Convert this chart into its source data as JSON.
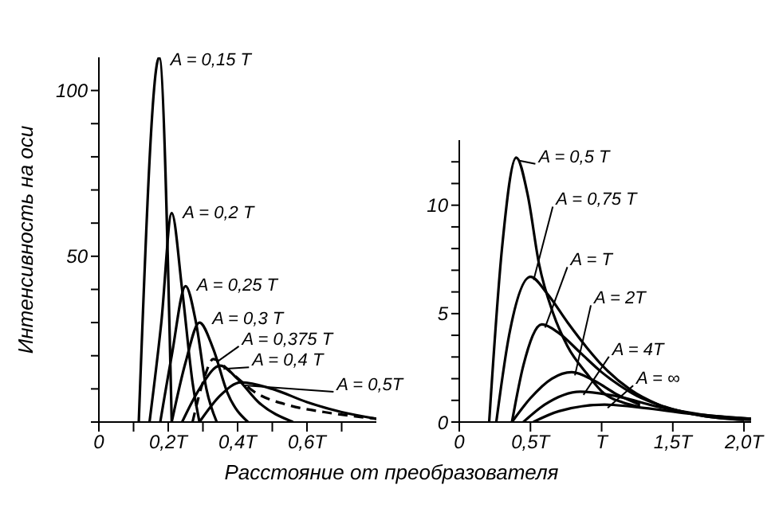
{
  "chart_data": [
    {
      "type": "line",
      "ylabel": "Интенсивность на оси",
      "xlabel": "Расстояние от преобразователя",
      "marker": "none",
      "xlim": [
        0,
        0.8
      ],
      "xticks": [
        {
          "value": 0,
          "label": "0"
        },
        {
          "value": 0.1,
          "label": null
        },
        {
          "value": 0.2,
          "label": "0,2T"
        },
        {
          "value": 0.3,
          "label": null
        },
        {
          "value": 0.4,
          "label": "0,4T"
        },
        {
          "value": 0.5,
          "label": null
        },
        {
          "value": 0.6,
          "label": "0,6T"
        },
        {
          "value": 0.7,
          "label": null
        }
      ],
      "ylim": [
        0,
        110
      ],
      "yticks": [
        {
          "value": 0,
          "label": null
        },
        {
          "value": 10,
          "label": null
        },
        {
          "value": 20,
          "label": null
        },
        {
          "value": 30,
          "label": null
        },
        {
          "value": 40,
          "label": null
        },
        50,
        {
          "value": 60,
          "label": null
        },
        {
          "value": 70,
          "label": null
        },
        {
          "value": 80,
          "label": null
        },
        {
          "value": 90,
          "label": null
        },
        100
      ],
      "series": [
        {
          "name": "A = 0,15 T",
          "color": "#000000",
          "x": [
            0.115,
            0.174,
            0.21
          ],
          "values": [
            0,
            110,
            0
          ]
        },
        {
          "name": "A = 0,2 T",
          "color": "#000000",
          "x": [
            0.146,
            0.18,
            0.21,
            0.24,
            0.27,
            0.29
          ],
          "values": [
            0,
            30,
            63,
            40,
            12,
            0
          ]
        },
        {
          "name": "A = 0,25 T",
          "color": "#000000",
          "x": [
            0.177,
            0.21,
            0.25,
            0.28,
            0.31,
            0.34
          ],
          "values": [
            0,
            20,
            41,
            30,
            10,
            0
          ]
        },
        {
          "name": "A = 0,3 T",
          "color": "#000000",
          "x": [
            0.21,
            0.25,
            0.29,
            0.33,
            0.37,
            0.43
          ],
          "values": [
            0,
            18,
            30,
            22,
            9,
            0
          ]
        },
        {
          "name": "A = 0,375 T",
          "color": "#000000",
          "line_style": "dashed",
          "x": [
            0.27,
            0.3,
            0.33,
            0.38,
            0.45,
            0.55,
            0.65,
            0.8
          ],
          "values": [
            0,
            12,
            19,
            15,
            9,
            5,
            3,
            1
          ]
        },
        {
          "name": "A = 0,4 T",
          "color": "#000000",
          "x": [
            0.24,
            0.29,
            0.35,
            0.4,
            0.46,
            0.56
          ],
          "values": [
            0,
            10,
            17,
            13,
            6,
            0
          ]
        },
        {
          "name": "A = 0,5T",
          "color": "#000000",
          "x": [
            0.29,
            0.35,
            0.41,
            0.5,
            0.6,
            0.7,
            0.8
          ],
          "values": [
            0,
            8,
            12,
            10,
            6,
            3,
            1
          ]
        }
      ]
    },
    {
      "type": "line",
      "marker": "none",
      "xlim": [
        0,
        2.05
      ],
      "xticks": [
        {
          "value": 0,
          "label": "0"
        },
        {
          "value": 0.5,
          "label": "0,5T"
        },
        {
          "value": 1,
          "label": "T"
        },
        {
          "value": 1.5,
          "label": "1,5T"
        },
        {
          "value": 2,
          "label": "2,0T"
        }
      ],
      "ylim": [
        0,
        13
      ],
      "yticks": [
        0,
        {
          "value": 1,
          "label": null
        },
        {
          "value": 2,
          "label": null
        },
        {
          "value": 3,
          "label": null
        },
        {
          "value": 4,
          "label": null
        },
        5,
        {
          "value": 6,
          "label": null
        },
        {
          "value": 7,
          "label": null
        },
        {
          "value": 8,
          "label": null
        },
        {
          "value": 9,
          "label": null
        },
        10,
        {
          "value": 11,
          "label": null
        },
        {
          "value": 12,
          "label": null
        }
      ],
      "series": [
        {
          "name": "A = 0,5 T",
          "color": "#000000",
          "x": [
            0.21,
            0.3,
            0.4,
            0.48,
            0.56,
            0.66,
            0.76,
            0.9,
            1.02,
            1.15,
            1.27
          ],
          "values": [
            0,
            8,
            12.2,
            10.5,
            7.3,
            5,
            3.5,
            2.2,
            1.3,
            0.9,
            0.7
          ]
        },
        {
          "name": "A = 0,75 T",
          "color": "#000000",
          "x": [
            0.26,
            0.35,
            0.5,
            0.62,
            0.76,
            0.9,
            1.02,
            1.2,
            1.4,
            1.7,
            2.0
          ],
          "values": [
            0,
            4,
            6.7,
            5.9,
            4.6,
            3.4,
            2.5,
            1.5,
            0.8,
            0.3,
            0.1
          ]
        },
        {
          "name": "A = T",
          "color": "#000000",
          "x": [
            0.37,
            0.45,
            0.58,
            0.7,
            0.85,
            1.0,
            1.08,
            1.25,
            1.4,
            1.7,
            2.05
          ],
          "values": [
            0,
            2.6,
            4.5,
            4.1,
            3.2,
            2.3,
            1.9,
            1.2,
            0.8,
            0.3,
            0.1
          ]
        },
        {
          "name": "A = 2T",
          "color": "#000000",
          "x": [
            0.37,
            0.5,
            0.65,
            0.79,
            0.95,
            1.1,
            1.27
          ],
          "values": [
            0,
            1.1,
            2,
            2.3,
            1.9,
            1.3,
            0.8
          ]
        },
        {
          "name": "A = 4T",
          "color": "#000000",
          "x": [
            0.45,
            0.6,
            0.85,
            1.1,
            1.4,
            1.7,
            2.05
          ],
          "values": [
            0,
            0.8,
            1.4,
            1.2,
            0.7,
            0.35,
            0.15
          ]
        },
        {
          "name": "A = ∞",
          "color": "#000000",
          "x": [
            0.52,
            0.7,
            1.02,
            1.3,
            1.6,
            2.05
          ],
          "values": [
            0,
            0.5,
            0.8,
            0.65,
            0.4,
            0.15
          ]
        }
      ]
    }
  ]
}
